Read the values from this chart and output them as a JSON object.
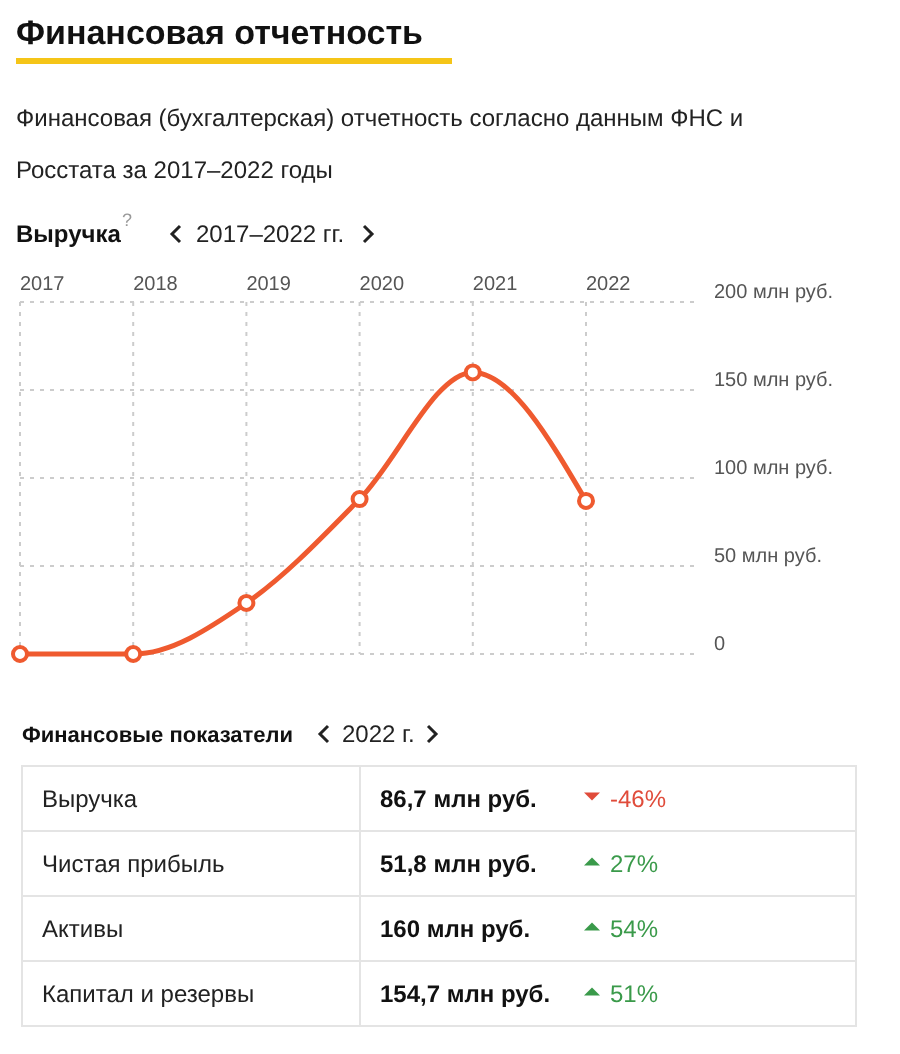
{
  "chart_data": [
    {
      "type": "line",
      "title": "Финансовая отчетность",
      "subtitle": "Финансовая (бухгалтерская) отчетность согласно данным ФНС и Росстата за 2017–2022 годы",
      "ylabel": "Выручка",
      "annotations": [
        "?",
        "2017–2022 гг."
      ],
      "categories": [
        "2017",
        "2018",
        "2019",
        "2020",
        "2021",
        "2022"
      ],
      "series": [
        {
          "color": "#ef5a2f",
          "values": [
            0,
            0,
            29,
            88,
            160,
            87
          ]
        }
      ],
      "ylim": [
        0,
        200
      ],
      "yticks": [
        {
          "value": 0,
          "label": "0"
        },
        {
          "value": 50,
          "label": "50 млн руб."
        },
        {
          "value": 100,
          "label": "100 млн руб."
        },
        {
          "value": 150,
          "label": "150 млн руб."
        },
        {
          "value": 200,
          "label": "200 млн руб."
        }
      ],
      "grid": true,
      "marker": "circle",
      "line_style": "solid"
    },
    {
      "type": "other",
      "title": "Финансовые показатели",
      "annotations": [
        "2022 г.",
        "Выручка",
        "86,7 млн руб.",
        "-46%",
        "Чистая прибыль",
        "51,8 млн руб.",
        "27%",
        "Активы",
        "160 млн руб.",
        "54%",
        "Капитал и резервы",
        "154,7 млн руб.",
        "51%"
      ]
    }
  ]
}
